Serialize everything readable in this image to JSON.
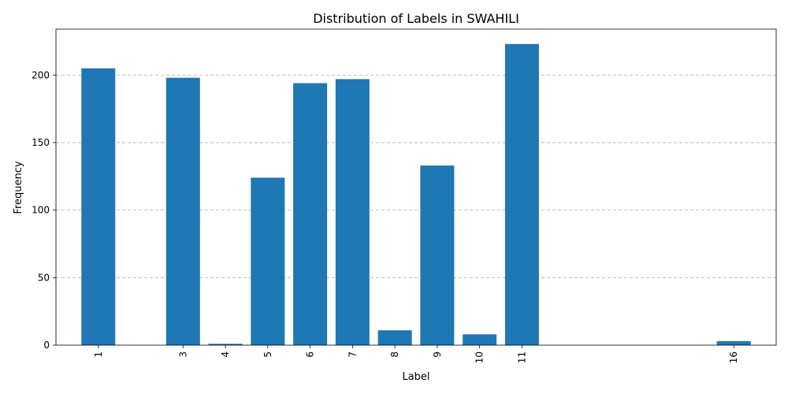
{
  "chart_data": {
    "type": "bar",
    "title": "Distribution of Labels in SWAHILI",
    "xlabel": "Label",
    "ylabel": "Frequency",
    "categories": [
      "1",
      "3",
      "4",
      "5",
      "6",
      "7",
      "8",
      "9",
      "10",
      "11",
      "16"
    ],
    "x": [
      1,
      3,
      4,
      5,
      6,
      7,
      8,
      9,
      10,
      11,
      16
    ],
    "values": [
      205,
      198,
      1,
      124,
      194,
      197,
      11,
      133,
      8,
      223,
      3
    ],
    "xlim": [
      0,
      17
    ],
    "ylim": [
      0,
      234
    ],
    "yticks": [
      0,
      50,
      100,
      150,
      200
    ],
    "x_tick_rotation": 90,
    "grid": "y-dashed",
    "bar_color": "#1f77b4"
  }
}
